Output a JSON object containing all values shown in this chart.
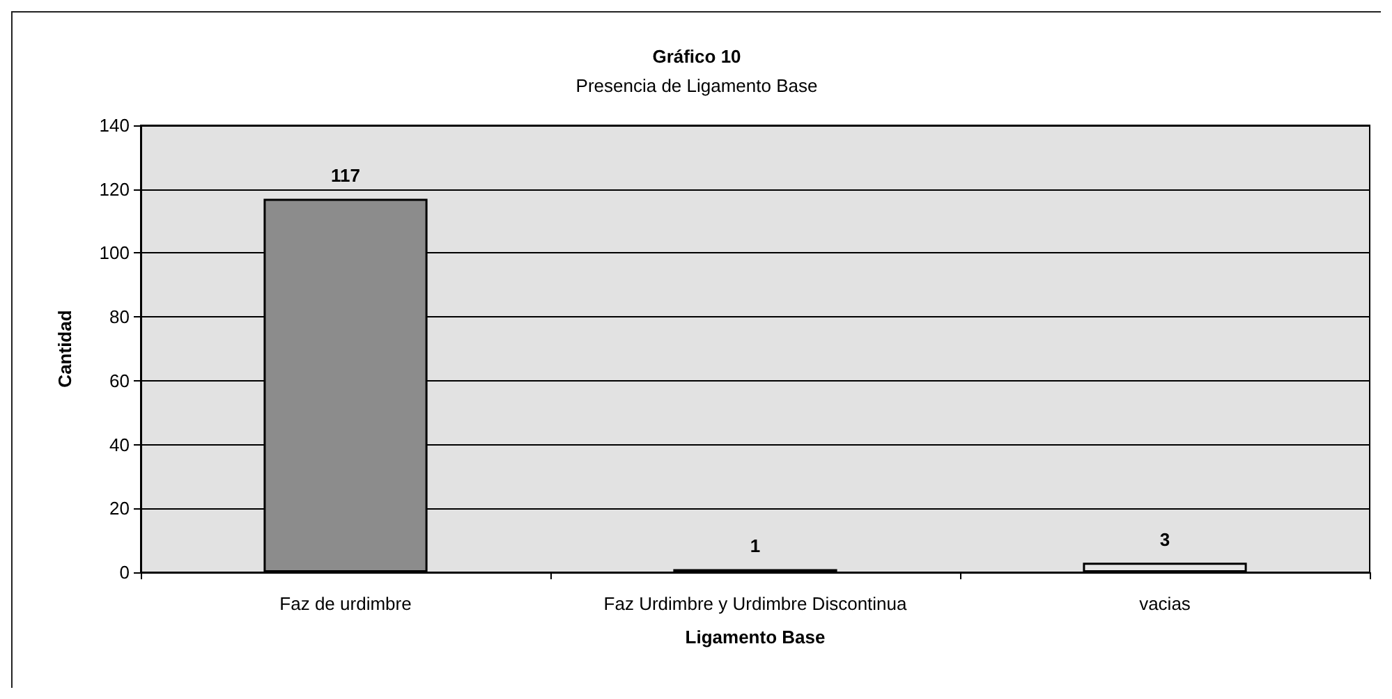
{
  "chart_data": {
    "type": "bar",
    "title": "Gráfico 10",
    "subtitle": "Presencia de Ligamento Base",
    "xlabel": "Ligamento Base",
    "ylabel": "Cantidad",
    "categories": [
      "Faz de urdimbre",
      "Faz Urdimbre y Urdimbre Discontinua",
      "vacias"
    ],
    "values": [
      117,
      1,
      3
    ],
    "colors": [
      "#8c8c8c",
      "#5a5a5a",
      "#e6e6e6"
    ],
    "ylim": [
      0,
      140
    ],
    "yticks": [
      0,
      20,
      40,
      60,
      80,
      100,
      120,
      140
    ],
    "grid": "y",
    "data_labels": true
  }
}
